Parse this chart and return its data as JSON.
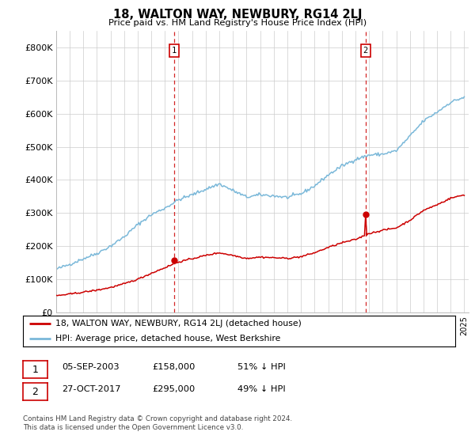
{
  "title": "18, WALTON WAY, NEWBURY, RG14 2LJ",
  "subtitle": "Price paid vs. HM Land Registry's House Price Index (HPI)",
  "ylim": [
    0,
    850000
  ],
  "yticks": [
    0,
    100000,
    200000,
    300000,
    400000,
    500000,
    600000,
    700000,
    800000
  ],
  "ytick_labels": [
    "£0",
    "£100K",
    "£200K",
    "£300K",
    "£400K",
    "£500K",
    "£600K",
    "£700K",
    "£800K"
  ],
  "hpi_color": "#7ab8d9",
  "price_color": "#cc0000",
  "vline_color": "#cc0000",
  "sale1_year": 2003.67,
  "sale2_year": 2017.75,
  "sale1_price": 158000,
  "sale2_price": 295000,
  "legend_line1": "18, WALTON WAY, NEWBURY, RG14 2LJ (detached house)",
  "legend_line2": "HPI: Average price, detached house, West Berkshire",
  "table_row1": [
    "1",
    "05-SEP-2003",
    "£158,000",
    "51% ↓ HPI"
  ],
  "table_row2": [
    "2",
    "27-OCT-2017",
    "£295,000",
    "49% ↓ HPI"
  ],
  "footnote": "Contains HM Land Registry data © Crown copyright and database right 2024.\nThis data is licensed under the Open Government Licence v3.0.",
  "grid_color": "#cccccc",
  "hpi_years": [
    1995,
    1996,
    1997,
    1998,
    1999,
    2000,
    2001,
    2002,
    2003,
    2004,
    2005,
    2006,
    2007,
    2008,
    2009,
    2010,
    2011,
    2012,
    2013,
    2014,
    2015,
    2016,
    2017,
    2018,
    2019,
    2020,
    2021,
    2022,
    2023,
    2024,
    2025
  ],
  "hpi_values": [
    130000,
    145000,
    162000,
    178000,
    200000,
    228000,
    265000,
    295000,
    315000,
    340000,
    355000,
    372000,
    388000,
    368000,
    348000,
    355000,
    352000,
    347000,
    358000,
    382000,
    415000,
    442000,
    462000,
    475000,
    478000,
    488000,
    532000,
    578000,
    605000,
    635000,
    650000
  ],
  "red_years": [
    1995,
    1996,
    1997,
    1998,
    1999,
    2000,
    2001,
    2002,
    2003,
    2004,
    2005,
    2006,
    2007,
    2008,
    2009,
    2010,
    2011,
    2012,
    2013,
    2014,
    2015,
    2016,
    2017,
    2018,
    2019,
    2020,
    2021,
    2022,
    2023,
    2024,
    2025
  ],
  "red_values": [
    50000,
    55000,
    61000,
    67000,
    75000,
    86000,
    100000,
    118000,
    135000,
    152000,
    162000,
    172000,
    180000,
    172000,
    163000,
    167000,
    165000,
    163000,
    168000,
    180000,
    196000,
    210000,
    220000,
    238000,
    248000,
    255000,
    278000,
    308000,
    325000,
    345000,
    355000
  ]
}
